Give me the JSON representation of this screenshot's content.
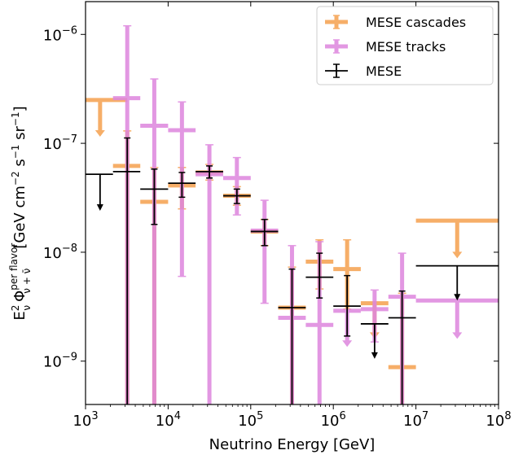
{
  "chart_data": {
    "type": "scatter",
    "title": "",
    "xlabel": "Neutrino Energy [GeV]",
    "ylabel": {
      "main": "E",
      "sub1": "ν",
      "sup1": "2",
      "phi": "Φ",
      "phi_sup": "per flavor",
      "phi_sub": "ν + ν̄",
      "units": "[GeV cm",
      "u1": "−2",
      "u2": " s",
      "u3": "−1",
      "u4": " sr",
      "u5": "−1",
      "u6": "]"
    },
    "xscale": "log",
    "yscale": "log",
    "xlim": [
      1000,
      100000000
    ],
    "ylim": [
      4e-10,
      2e-06
    ],
    "x_ticks": [
      {
        "value": 1000,
        "base": "10",
        "exp": "3"
      },
      {
        "value": 10000,
        "base": "10",
        "exp": "4"
      },
      {
        "value": 100000,
        "base": "10",
        "exp": "5"
      },
      {
        "value": 1000000,
        "base": "10",
        "exp": "6"
      },
      {
        "value": 10000000,
        "base": "10",
        "exp": "7"
      },
      {
        "value": 100000000,
        "base": "10",
        "exp": "8"
      }
    ],
    "y_ticks": [
      {
        "value": 1e-09,
        "base": "10",
        "exp": "−9"
      },
      {
        "value": 1e-08,
        "base": "10",
        "exp": "−8"
      },
      {
        "value": 1e-07,
        "base": "10",
        "exp": "−7"
      },
      {
        "value": 1e-06,
        "base": "10",
        "exp": "−6"
      }
    ],
    "legend_position": "top-right",
    "series": [
      {
        "name": "MESE cascades",
        "color": "#f5a04e",
        "points": [
          {
            "x": 1500,
            "xlo": 1000,
            "xhi": 3200,
            "y": 2.5e-07,
            "upper_limit": true,
            "arrow_to": 1.15e-07
          },
          {
            "x": 3200,
            "xlo": 2150,
            "xhi": 4600,
            "y": 6.2e-08,
            "ylo": 4e-10,
            "yhi": 1.3e-07
          },
          {
            "x": 6800,
            "xlo": 4600,
            "xhi": 10000,
            "y": 2.9e-08,
            "ylo": 4e-10,
            "yhi": 6e-08
          },
          {
            "x": 14700,
            "xlo": 10000,
            "xhi": 21500,
            "y": 4.1e-08,
            "ylo": 2.5e-08,
            "yhi": 6e-08
          },
          {
            "x": 31600,
            "xlo": 21500,
            "xhi": 46400,
            "y": 5.4e-08,
            "ylo": 4.6e-08,
            "yhi": 6.4e-08
          },
          {
            "x": 68000,
            "xlo": 46400,
            "xhi": 100000,
            "y": 3.3e-08,
            "ylo": 2.7e-08,
            "yhi": 4e-08
          },
          {
            "x": 147000,
            "xlo": 100000,
            "xhi": 215000,
            "y": 1.55e-08,
            "ylo": 1.15e-08,
            "yhi": 2e-08
          },
          {
            "x": 316000,
            "xlo": 215000,
            "xhi": 464000,
            "y": 3.1e-09,
            "ylo": 4e-10,
            "yhi": 7.3e-09
          },
          {
            "x": 680000,
            "xlo": 464000,
            "xhi": 1000000,
            "y": 8.2e-09,
            "ylo": 4.6e-09,
            "yhi": 1.3e-08
          },
          {
            "x": 1470000,
            "xlo": 1000000,
            "xhi": 2150000,
            "y": 7e-09,
            "ylo": 3e-09,
            "yhi": 1.3e-08
          },
          {
            "x": 3160000,
            "xlo": 2150000,
            "xhi": 4640000,
            "y": 3.4e-09,
            "upper_limit": true,
            "arrow_to": 1.6e-09
          },
          {
            "x": 6800000,
            "xlo": 4640000,
            "xhi": 10000000,
            "y": 8.8e-10,
            "ylo": 4e-10,
            "yhi": 4.2e-09
          },
          {
            "x": 31600000,
            "xlo": 10000000,
            "xhi": 100000000,
            "y": 1.95e-08,
            "upper_limit": true,
            "arrow_to": 8.8e-09
          }
        ]
      },
      {
        "name": "MESE tracks",
        "color": "#de85de",
        "points": [
          {
            "x": 3200,
            "xlo": 2150,
            "xhi": 4600,
            "y": 2.6e-07,
            "ylo": 4e-10,
            "yhi": 1.2e-06
          },
          {
            "x": 6800,
            "xlo": 4600,
            "xhi": 10000,
            "y": 1.45e-07,
            "ylo": 4e-10,
            "yhi": 3.9e-07
          },
          {
            "x": 14700,
            "xlo": 10000,
            "xhi": 21500,
            "y": 1.32e-07,
            "ylo": 6e-09,
            "yhi": 2.4e-07
          },
          {
            "x": 31600,
            "xlo": 21500,
            "xhi": 46400,
            "y": 5.2e-08,
            "ylo": 4e-10,
            "yhi": 9.7e-08
          },
          {
            "x": 68000,
            "xlo": 46400,
            "xhi": 100000,
            "y": 4.8e-08,
            "ylo": 2.2e-08,
            "yhi": 7.4e-08
          },
          {
            "x": 147000,
            "xlo": 100000,
            "xhi": 215000,
            "y": 1.58e-08,
            "ylo": 3.4e-09,
            "yhi": 3e-08
          },
          {
            "x": 316000,
            "xlo": 215000,
            "xhi": 464000,
            "y": 2.5e-09,
            "ylo": 4e-10,
            "yhi": 1.15e-08
          },
          {
            "x": 680000,
            "xlo": 464000,
            "xhi": 1000000,
            "y": 2.15e-09,
            "ylo": 4e-10,
            "yhi": 1.25e-08
          },
          {
            "x": 1470000,
            "xlo": 1000000,
            "xhi": 2150000,
            "y": 2.9e-09,
            "upper_limit": true,
            "arrow_to": 1.35e-09
          },
          {
            "x": 3160000,
            "xlo": 2150000,
            "xhi": 4640000,
            "y": 3e-09,
            "ylo": 1.5e-09,
            "yhi": 4.5e-09
          },
          {
            "x": 6800000,
            "xlo": 4640000,
            "xhi": 10000000,
            "y": 3.9e-09,
            "ylo": 4e-10,
            "yhi": 9.8e-09
          },
          {
            "x": 31600000,
            "xlo": 10000000,
            "xhi": 100000000,
            "y": 3.6e-09,
            "upper_limit": true,
            "arrow_to": 1.6e-09
          }
        ]
      },
      {
        "name": "MESE",
        "color": "#000000",
        "points": [
          {
            "x": 1500,
            "xlo": 1000,
            "xhi": 2150,
            "y": 5.2e-08,
            "upper_limit": true,
            "arrow_to": 2.4e-08
          },
          {
            "x": 3200,
            "xlo": 2150,
            "xhi": 4600,
            "y": 5.5e-08,
            "ylo": 4e-10,
            "yhi": 1.12e-07
          },
          {
            "x": 6800,
            "xlo": 4600,
            "xhi": 10000,
            "y": 3.8e-08,
            "ylo": 1.8e-08,
            "yhi": 5.8e-08
          },
          {
            "x": 14700,
            "xlo": 10000,
            "xhi": 21500,
            "y": 4.3e-08,
            "ylo": 3.2e-08,
            "yhi": 5.4e-08
          },
          {
            "x": 31600,
            "xlo": 21500,
            "xhi": 46400,
            "y": 5.5e-08,
            "ylo": 4.8e-08,
            "yhi": 6.2e-08
          },
          {
            "x": 68000,
            "xlo": 46400,
            "xhi": 100000,
            "y": 3.3e-08,
            "ylo": 2.8e-08,
            "yhi": 3.8e-08
          },
          {
            "x": 147000,
            "xlo": 100000,
            "xhi": 215000,
            "y": 1.55e-08,
            "ylo": 1.15e-08,
            "yhi": 2e-08
          },
          {
            "x": 316000,
            "xlo": 215000,
            "xhi": 464000,
            "y": 3.1e-09,
            "ylo": 4e-10,
            "yhi": 7e-09
          },
          {
            "x": 680000,
            "xlo": 464000,
            "xhi": 1000000,
            "y": 5.9e-09,
            "ylo": 3.8e-09,
            "yhi": 9.8e-09
          },
          {
            "x": 1470000,
            "xlo": 1000000,
            "xhi": 2150000,
            "y": 3.2e-09,
            "ylo": 1.7e-09,
            "yhi": 6.1e-09
          },
          {
            "x": 3160000,
            "xlo": 2150000,
            "xhi": 4640000,
            "y": 2.2e-09,
            "upper_limit": true,
            "arrow_to": 1.05e-09
          },
          {
            "x": 6800000,
            "xlo": 4640000,
            "xhi": 10000000,
            "y": 2.5e-09,
            "ylo": 4e-10,
            "yhi": 4.4e-09
          },
          {
            "x": 31600000,
            "xlo": 10000000,
            "xhi": 100000000,
            "y": 7.5e-09,
            "upper_limit": true,
            "arrow_to": 3.6e-09
          }
        ]
      }
    ]
  }
}
